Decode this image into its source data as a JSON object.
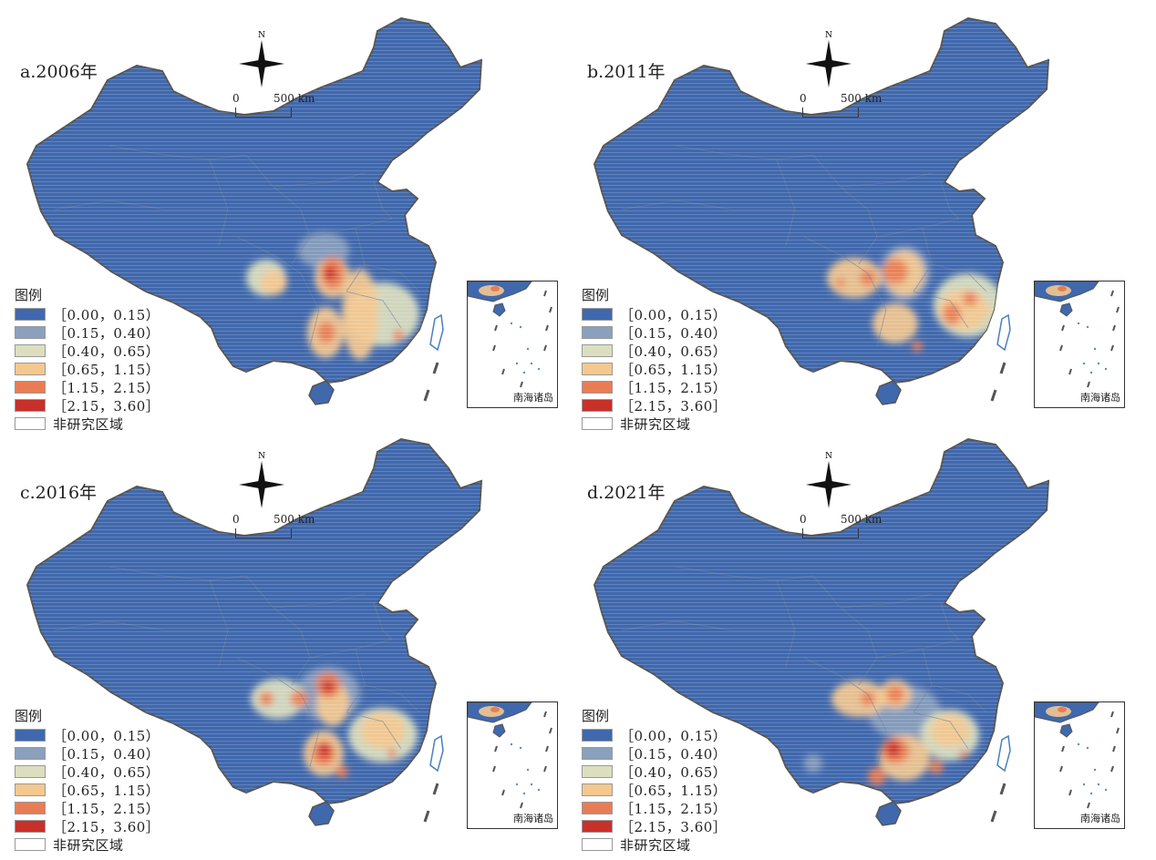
{
  "scale": {
    "zero": "0",
    "distance": "500 km"
  },
  "compass": {
    "north": "N"
  },
  "legend": {
    "title": "图例",
    "classes": [
      {
        "label": "［0.00，0.15）",
        "color": "#4068ad"
      },
      {
        "label": "［0.15，0.40）",
        "color": "#8aa0bd"
      },
      {
        "label": "［0.40，0.65）",
        "color": "#dcdfbf"
      },
      {
        "label": "［0.65，1.15）",
        "color": "#f4c88f"
      },
      {
        "label": "［1.15，2.15）",
        "color": "#e87c55"
      },
      {
        "label": "［2.15，3.60］",
        "color": "#c8302a"
      }
    ],
    "non_study": {
      "label": "非研究区域",
      "color": "#ffffff"
    }
  },
  "inset": {
    "label": "南海诸岛"
  },
  "panels": [
    {
      "title": "a.2006年"
    },
    {
      "title": "b.2011年"
    },
    {
      "title": "c.2016年"
    },
    {
      "title": "d.2021年"
    }
  ]
}
